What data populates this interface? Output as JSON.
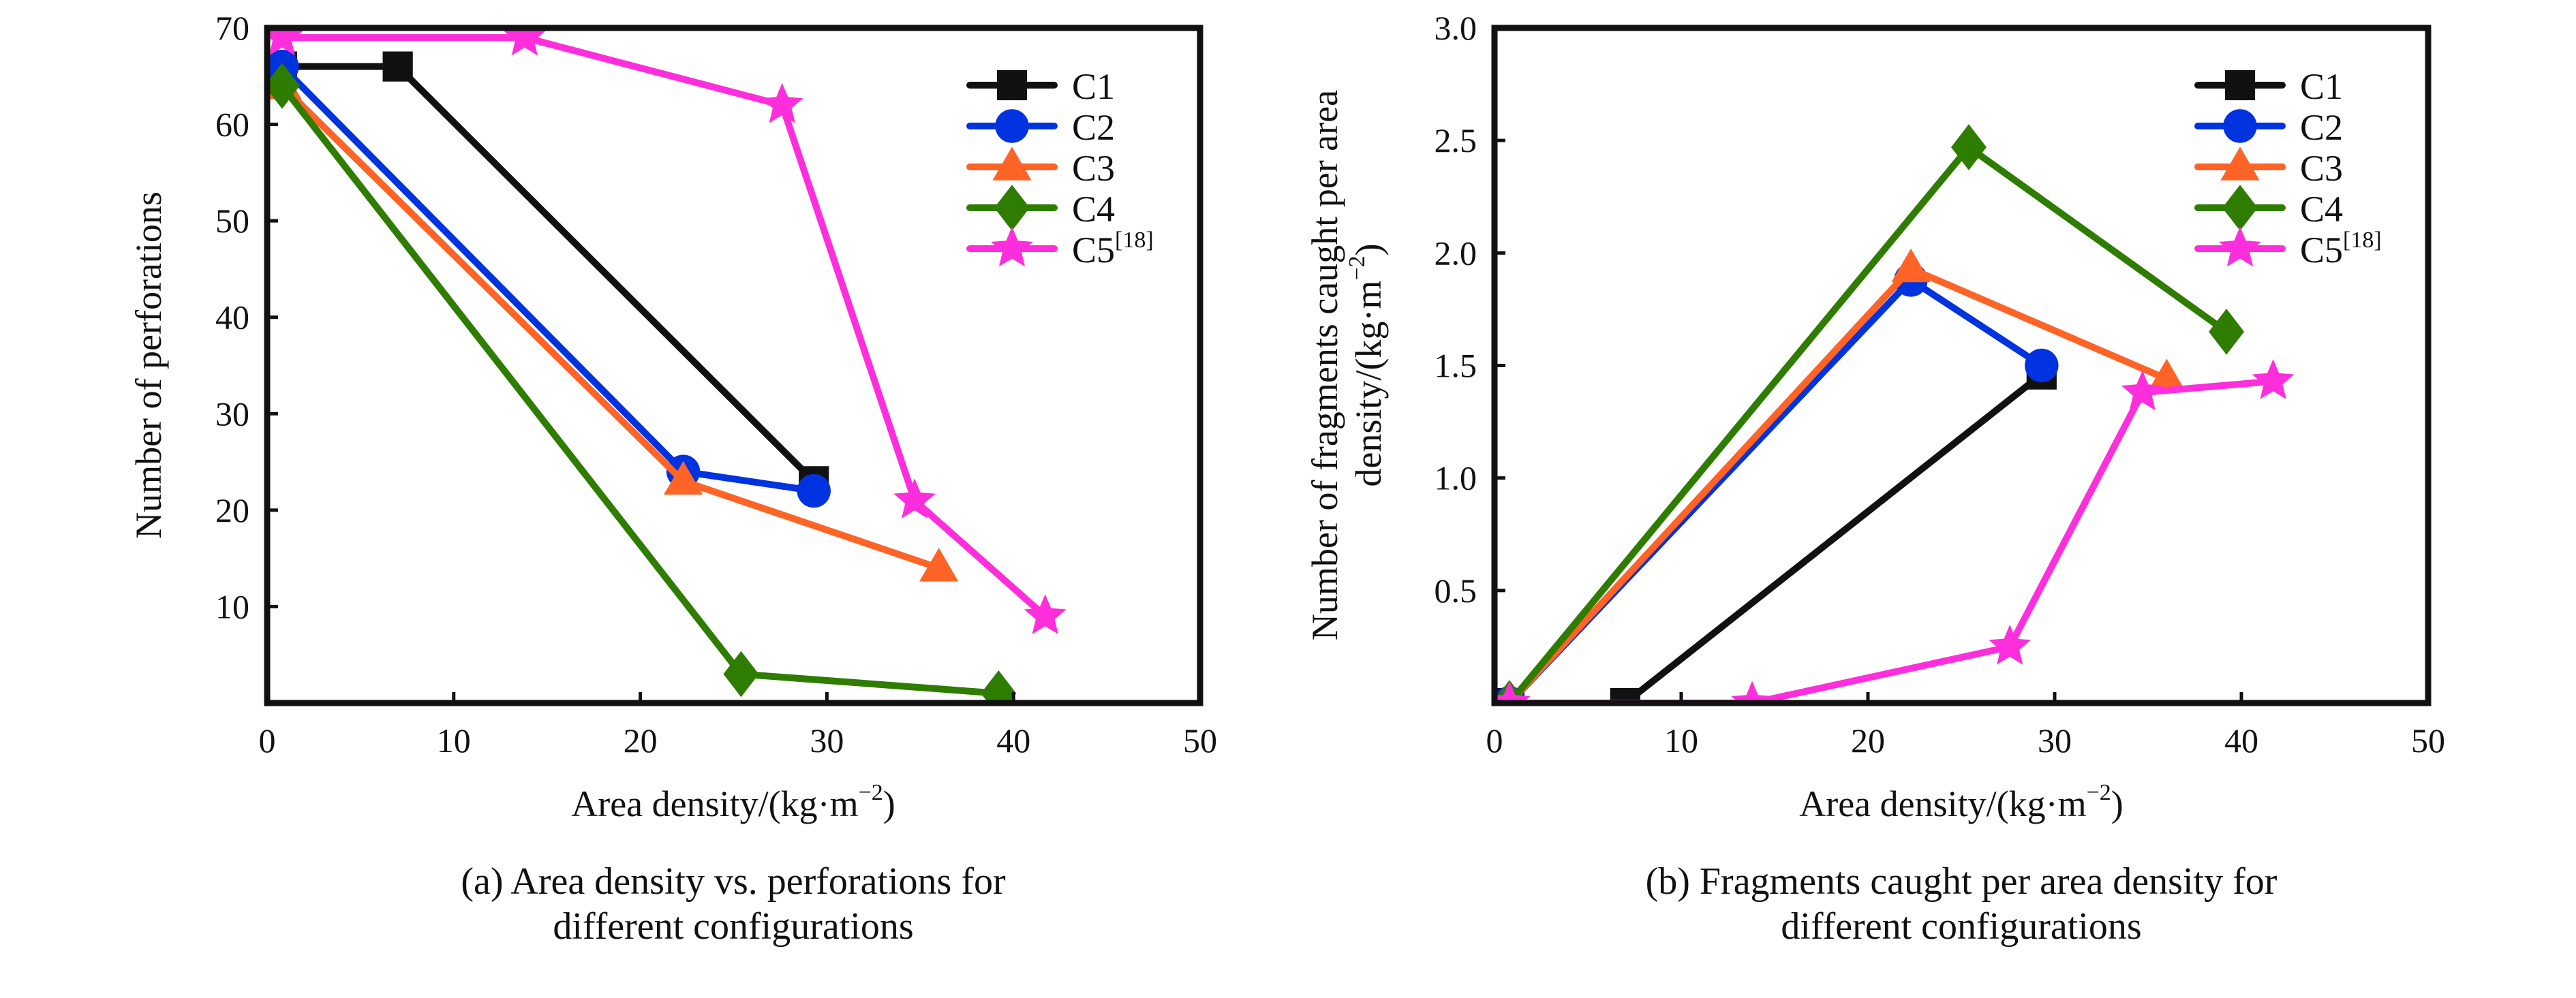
{
  "chart_data": [
    {
      "id": "a",
      "type": "line",
      "caption_lines": [
        "(a) Area density vs. perforations for",
        "different configurations"
      ],
      "xlabel": "Area density/(kg·m",
      "xlabel_sup": "−2",
      "xlabel_close": ")",
      "ylabel_lines": [
        "Number of perforations"
      ],
      "xlim": [
        0,
        50
      ],
      "ylim": [
        0,
        70
      ],
      "x_ticks": [
        0,
        10,
        20,
        30,
        40,
        50
      ],
      "x_tick_labels": [
        "0",
        "10",
        "20",
        "30",
        "40",
        "50"
      ],
      "y_ticks": [
        10,
        20,
        30,
        40,
        50,
        60,
        70
      ],
      "y_tick_labels": [
        "10",
        "20",
        "30",
        "40",
        "50",
        "60",
        "70"
      ],
      "grid": false,
      "legend_position": "top-right",
      "series": [
        {
          "name": "C1",
          "ref": "",
          "marker": "square",
          "color": "#111111",
          "x": [
            0.8,
            7.0,
            29.3
          ],
          "y": [
            66,
            66,
            23
          ]
        },
        {
          "name": "C2",
          "ref": "",
          "marker": "circle",
          "color": "#0033e0",
          "x": [
            0.8,
            22.3,
            29.3
          ],
          "y": [
            66,
            24,
            22
          ]
        },
        {
          "name": "C3",
          "ref": "",
          "marker": "triangle",
          "color": "#ff6326",
          "x": [
            0.8,
            22.3,
            36.0
          ],
          "y": [
            64,
            23,
            14
          ]
        },
        {
          "name": "C4",
          "ref": "",
          "marker": "diamond",
          "color": "#2e7d00",
          "x": [
            0.8,
            25.4,
            39.2
          ],
          "y": [
            64,
            3,
            1
          ]
        },
        {
          "name": "C5",
          "ref": "[18]",
          "marker": "star",
          "color": "#ff2edc",
          "x": [
            0.8,
            13.8,
            27.6,
            34.7,
            41.7
          ],
          "y": [
            69,
            69,
            62,
            21,
            9
          ]
        }
      ]
    },
    {
      "id": "b",
      "type": "line",
      "caption_lines": [
        "(b) Fragments caught per area density for",
        "different configurations"
      ],
      "xlabel": "Area density/(kg·m",
      "xlabel_sup": "−2",
      "xlabel_close": ")",
      "ylabel_lines": [
        "Number of fragments caught per area",
        "density/(kg·m",
        "−2",
        ")"
      ],
      "xlim": [
        0,
        50
      ],
      "ylim": [
        0,
        3.0
      ],
      "x_ticks": [
        0,
        10,
        20,
        30,
        40,
        50
      ],
      "x_tick_labels": [
        "0",
        "10",
        "20",
        "30",
        "40",
        "50"
      ],
      "y_ticks": [
        0.5,
        1.0,
        1.5,
        2.0,
        2.5,
        3.0
      ],
      "y_tick_labels": [
        "0.5",
        "1.0",
        "1.5",
        "2.0",
        "2.5",
        "3.0"
      ],
      "grid": false,
      "legend_position": "top-right",
      "series": [
        {
          "name": "C1",
          "ref": "",
          "marker": "square",
          "color": "#111111",
          "x": [
            0.8,
            7.0,
            29.3
          ],
          "y": [
            0,
            0,
            1.46
          ]
        },
        {
          "name": "C2",
          "ref": "",
          "marker": "circle",
          "color": "#0033e0",
          "x": [
            0.8,
            22.3,
            29.3
          ],
          "y": [
            0,
            1.88,
            1.5
          ]
        },
        {
          "name": "C3",
          "ref": "",
          "marker": "triangle",
          "color": "#ff6326",
          "x": [
            0.8,
            22.3,
            36.0
          ],
          "y": [
            0,
            1.93,
            1.44
          ]
        },
        {
          "name": "C4",
          "ref": "",
          "marker": "diamond",
          "color": "#2e7d00",
          "x": [
            0.8,
            25.4,
            39.2
          ],
          "y": [
            0,
            2.47,
            1.65
          ]
        },
        {
          "name": "C5",
          "ref": "[18]",
          "marker": "star",
          "color": "#ff2edc",
          "x": [
            0.8,
            13.8,
            27.6,
            34.7,
            41.7
          ],
          "y": [
            0,
            0,
            0.25,
            1.38,
            1.43
          ]
        }
      ]
    }
  ]
}
